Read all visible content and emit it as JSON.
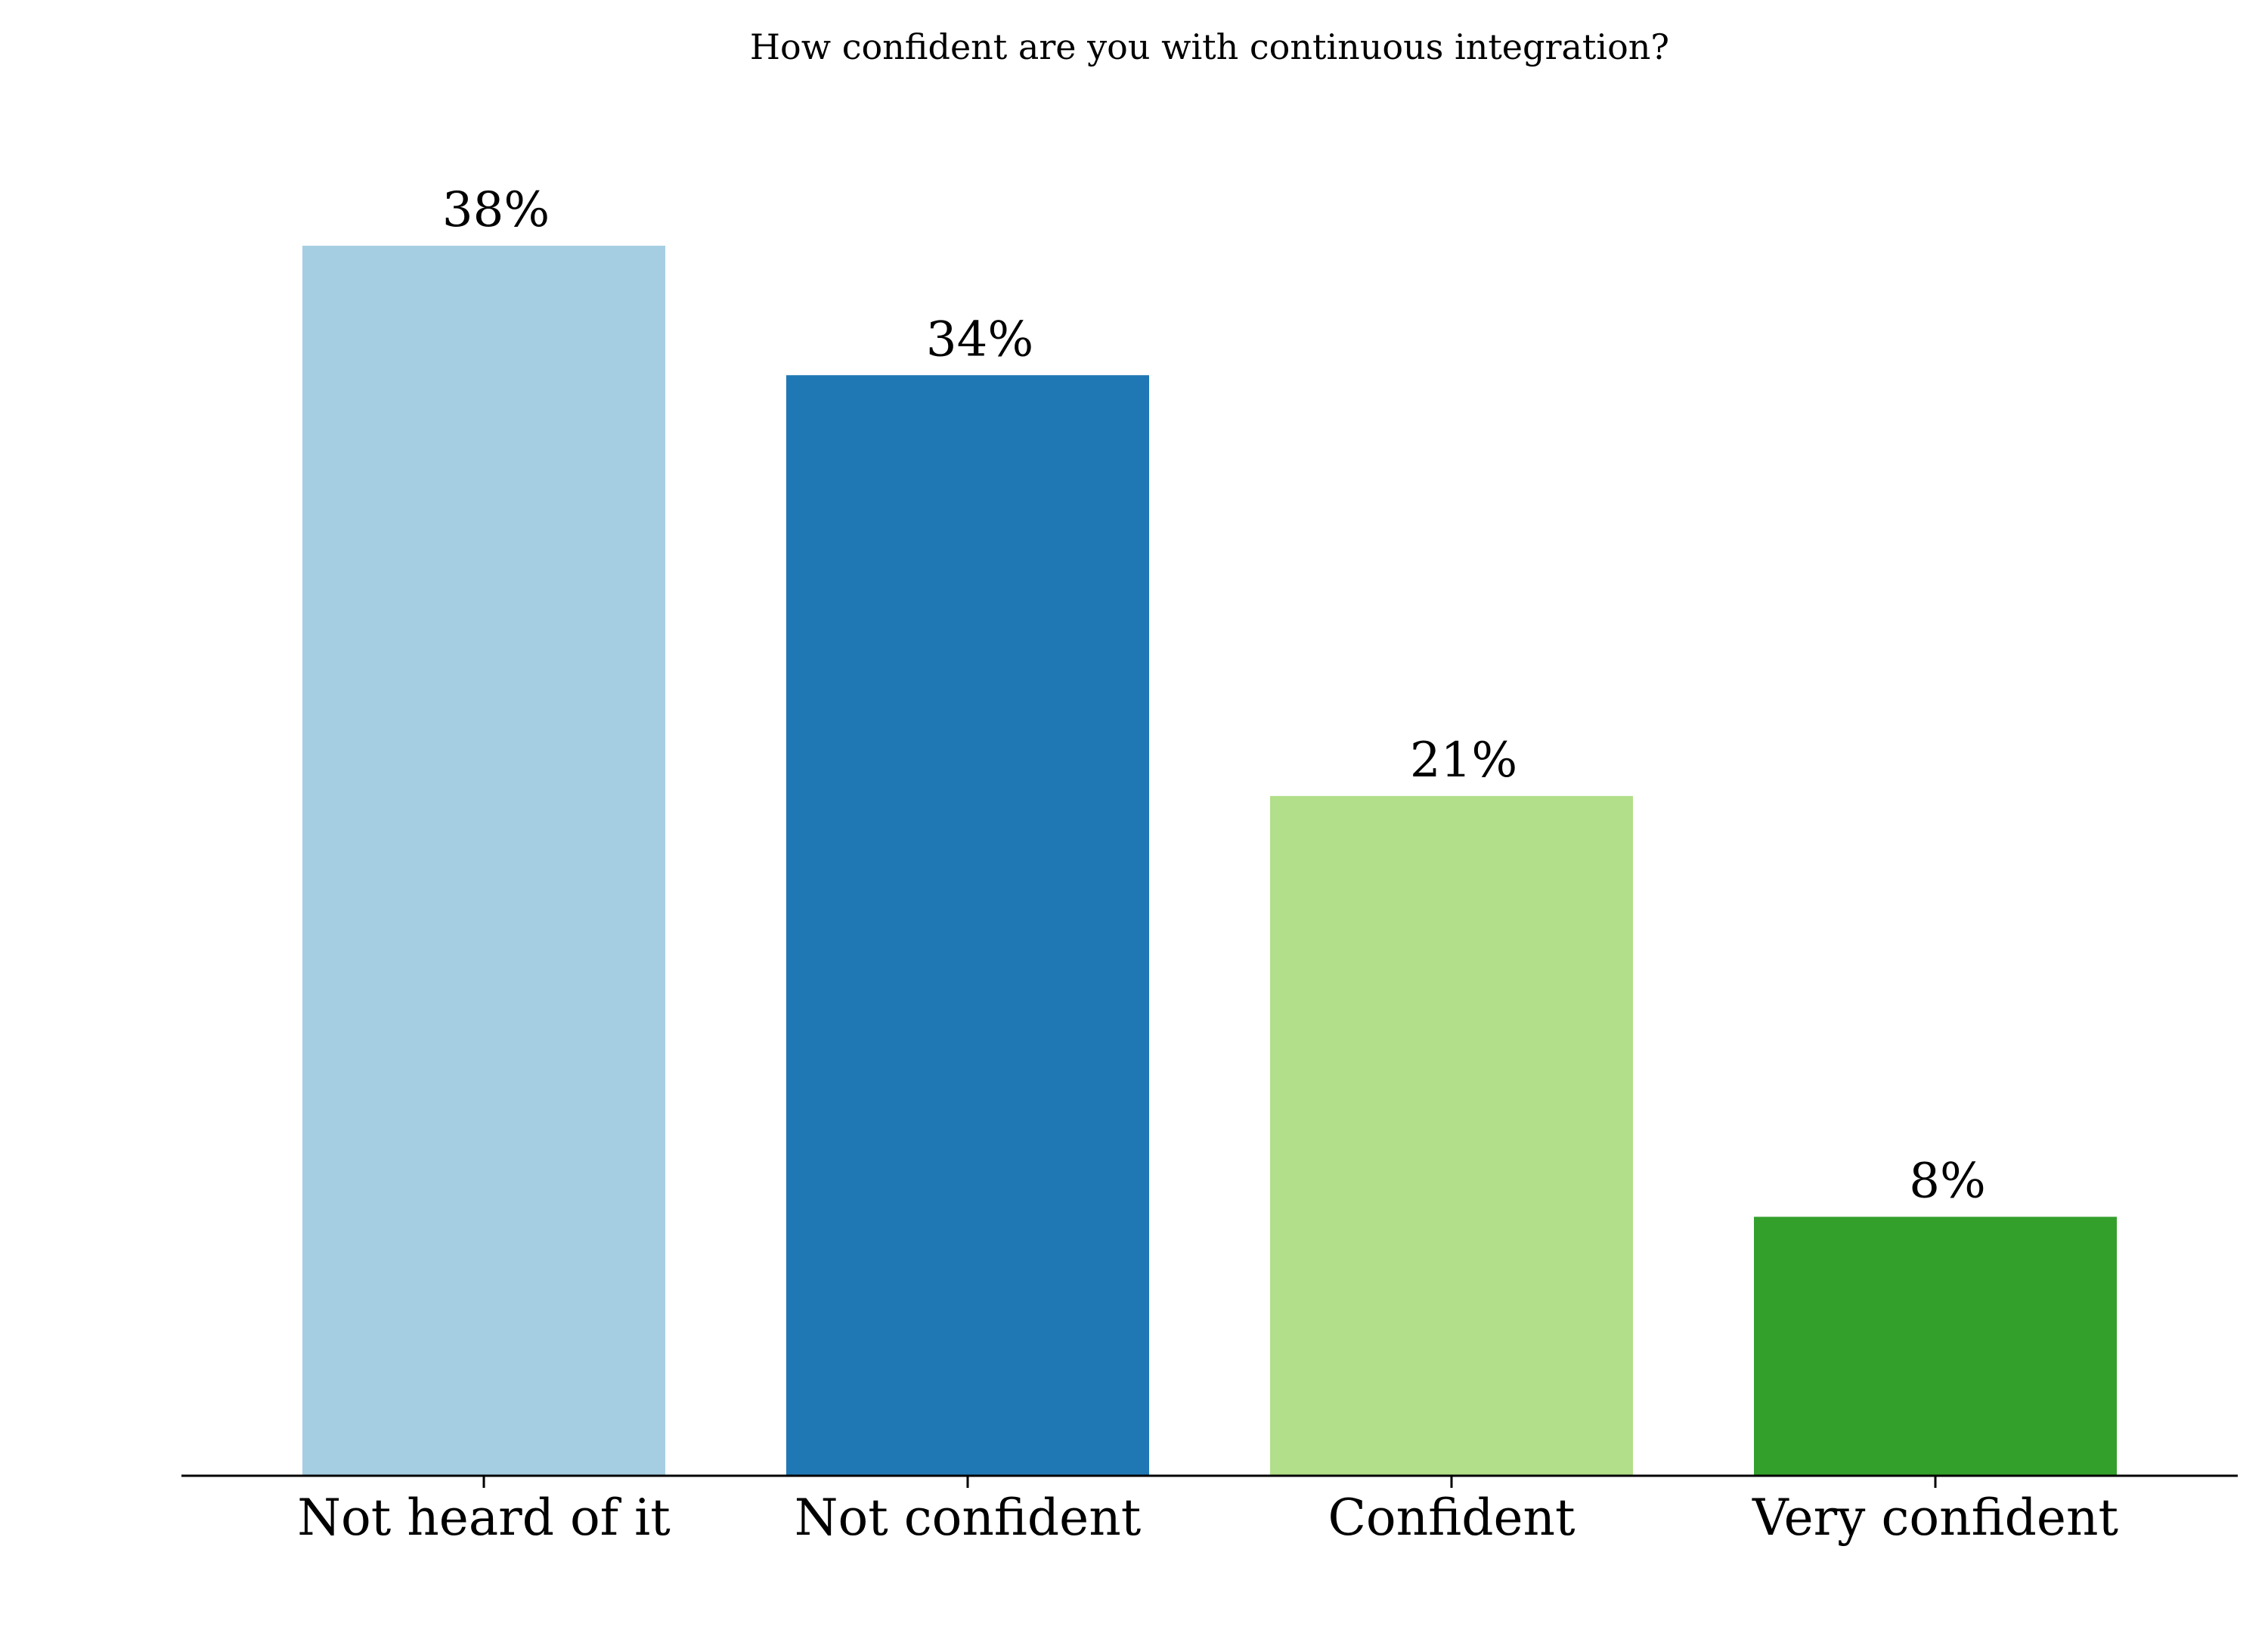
{
  "chart_data": {
    "type": "bar",
    "title": "How confident are you with continuous integration?",
    "xlabel": "",
    "ylabel": "",
    "categories": [
      "Not heard of it",
      "Not confident",
      "Confident",
      "Very confident"
    ],
    "values": [
      38,
      34,
      21,
      8
    ],
    "value_labels": [
      "38%",
      "34%",
      "21%",
      "8%"
    ],
    "colors": [
      "#a6cee3",
      "#1f78b4",
      "#b2df8a",
      "#33a02c"
    ],
    "ylim": [
      0,
      45
    ],
    "grid": false,
    "legend": "none",
    "y_axis_visible": false
  }
}
